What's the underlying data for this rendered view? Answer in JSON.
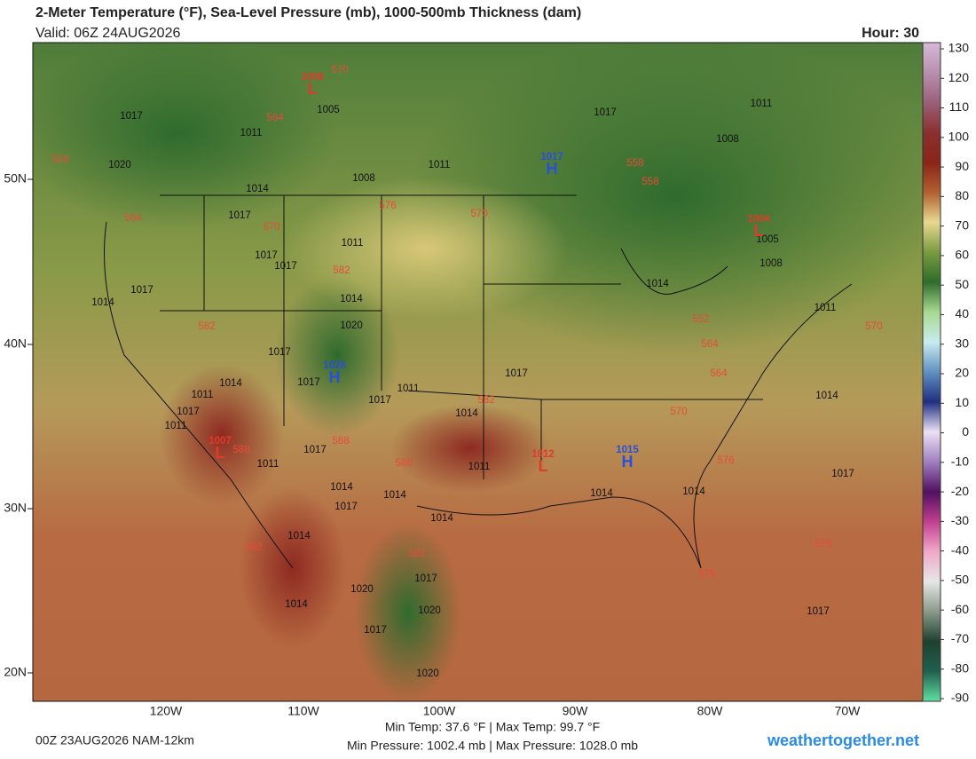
{
  "header": {
    "title": "2-Meter Temperature (°F), Sea-Level Pressure (mb), 1000-500mb Thickness (dam)",
    "valid": "Valid: 06Z 24AUG2026",
    "hour": "Hour: 30"
  },
  "map": {
    "lat_labels": [
      "50N",
      "40N",
      "30N",
      "20N"
    ],
    "lon_labels": [
      "120W",
      "110W",
      "100W",
      "90W",
      "80W",
      "70W"
    ],
    "isobar_labels": [
      1017,
      1011,
      1005,
      1020,
      1014,
      1008,
      1011,
      1017,
      1011,
      1008,
      1017,
      1011,
      1017,
      1017,
      1017,
      1014,
      1014,
      1020,
      1017,
      1014,
      1017,
      1011,
      1017,
      1011,
      1011,
      1017,
      1014,
      1017,
      1014,
      1005,
      1008,
      1011,
      1017,
      1014,
      1014,
      1011,
      1017,
      1014,
      1014,
      1014,
      1014,
      1014,
      1017,
      1020,
      1017,
      1020,
      1017,
      1020,
      1014,
      1017,
      1011
    ],
    "thickness_labels": [
      570,
      564,
      558,
      564,
      576,
      570,
      570,
      582,
      582,
      558,
      558,
      552,
      564,
      564,
      570,
      582,
      588,
      588,
      588,
      582,
      582,
      576,
      576,
      576,
      570
    ],
    "centers": [
      {
        "letter": "L",
        "value": 1008
      },
      {
        "letter": "H",
        "value": 1017
      },
      {
        "letter": "L",
        "value": 1004
      },
      {
        "letter": "H",
        "value": 1028
      },
      {
        "letter": "L",
        "value": 1007
      },
      {
        "letter": "L",
        "value": 1012
      },
      {
        "letter": "H",
        "value": 1015
      }
    ]
  },
  "colorbar": {
    "ticks": [
      130,
      120,
      110,
      100,
      90,
      80,
      70,
      60,
      50,
      40,
      30,
      20,
      10,
      0,
      -10,
      -20,
      -30,
      -40,
      -50,
      -60,
      -70,
      -80,
      -90
    ]
  },
  "footer": {
    "run": "00Z 23AUG2026 NAM-12km",
    "temp_range": "Min Temp: 37.6 °F | Max Temp: 99.7 °F",
    "pressure_range": "Min Pressure: 1002.4 mb | Max Pressure: 1028.0 mb",
    "site": "weathertogether.net"
  }
}
